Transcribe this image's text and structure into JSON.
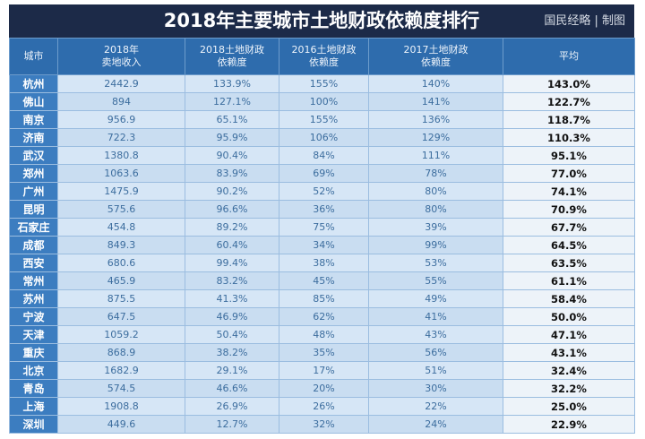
{
  "header": {
    "title": "2018年主要城市土地财政依赖度排行",
    "credit": "国民经略 | 制图"
  },
  "table": {
    "columns": [
      [
        "城市"
      ],
      [
        "2018年",
        "卖地收入"
      ],
      [
        "2018土地财政",
        "依赖度"
      ],
      [
        "2016土地财政",
        "依赖度"
      ],
      [
        "2017土地财政",
        "依赖度"
      ],
      [
        "平均"
      ]
    ],
    "rows": [
      [
        "杭州",
        "2442.9",
        "133.9%",
        "155%",
        "140%",
        "143.0%"
      ],
      [
        "佛山",
        "894",
        "127.1%",
        "100%",
        "141%",
        "122.7%"
      ],
      [
        "南京",
        "956.9",
        "65.1%",
        "155%",
        "136%",
        "118.7%"
      ],
      [
        "济南",
        "722.3",
        "95.9%",
        "106%",
        "129%",
        "110.3%"
      ],
      [
        "武汉",
        "1380.8",
        "90.4%",
        "84%",
        "111%",
        "95.1%"
      ],
      [
        "郑州",
        "1063.6",
        "83.9%",
        "69%",
        "78%",
        "77.0%"
      ],
      [
        "广州",
        "1475.9",
        "90.2%",
        "52%",
        "80%",
        "74.1%"
      ],
      [
        "昆明",
        "575.6",
        "96.6%",
        "36%",
        "80%",
        "70.9%"
      ],
      [
        "石家庄",
        "454.8",
        "89.2%",
        "75%",
        "39%",
        "67.7%"
      ],
      [
        "成都",
        "849.3",
        "60.4%",
        "34%",
        "99%",
        "64.5%"
      ],
      [
        "西安",
        "680.6",
        "99.4%",
        "38%",
        "53%",
        "63.5%"
      ],
      [
        "常州",
        "465.9",
        "83.2%",
        "45%",
        "55%",
        "61.1%"
      ],
      [
        "苏州",
        "875.5",
        "41.3%",
        "85%",
        "49%",
        "58.4%"
      ],
      [
        "宁波",
        "647.5",
        "46.9%",
        "62%",
        "41%",
        "50.0%"
      ],
      [
        "天津",
        "1059.2",
        "50.4%",
        "48%",
        "43%",
        "47.1%"
      ],
      [
        "重庆",
        "868.9",
        "38.2%",
        "35%",
        "56%",
        "43.1%"
      ],
      [
        "北京",
        "1682.9",
        "29.1%",
        "17%",
        "51%",
        "32.4%"
      ],
      [
        "青岛",
        "574.5",
        "46.6%",
        "20%",
        "30%",
        "32.2%"
      ],
      [
        "上海",
        "1908.8",
        "26.9%",
        "26%",
        "22%",
        "25.0%"
      ],
      [
        "深圳",
        "449.6",
        "12.7%",
        "32%",
        "24%",
        "22.9%"
      ]
    ]
  }
}
